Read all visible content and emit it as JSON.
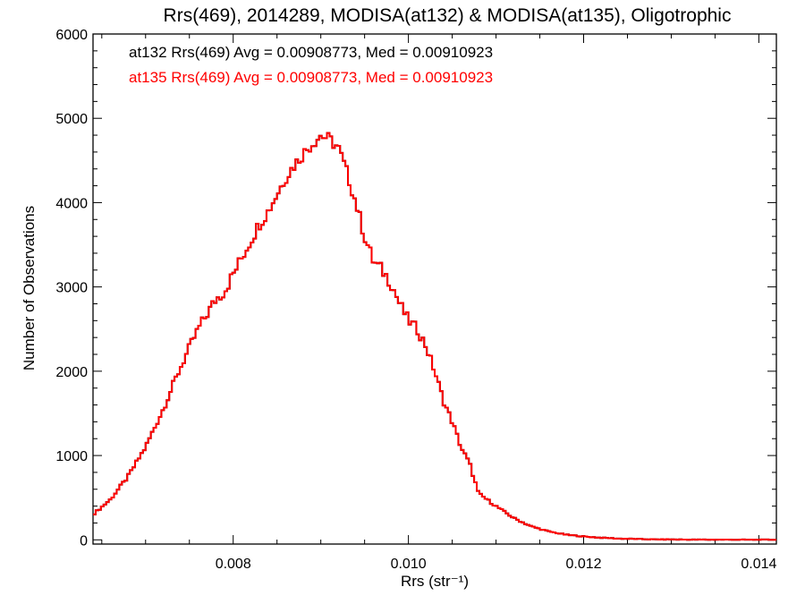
{
  "chart_data": {
    "type": "line",
    "title": "Rrs(469), 2014289, MODISA(at132) & MODISA(at135), Oligotrophic",
    "xlabel": "Rrs (str⁻¹)",
    "ylabel": "Number of Observations",
    "xlim": [
      0.0064,
      0.0142
    ],
    "ylim": [
      -50,
      6000
    ],
    "x_ticks": [
      {
        "value": 0.008,
        "label": "0.008"
      },
      {
        "value": 0.01,
        "label": "0.010"
      },
      {
        "value": 0.012,
        "label": "0.012"
      },
      {
        "value": 0.014,
        "label": "0.014"
      }
    ],
    "y_ticks": [
      {
        "value": 0,
        "label": "0"
      },
      {
        "value": 1000,
        "label": "1000"
      },
      {
        "value": 2000,
        "label": "2000"
      },
      {
        "value": 3000,
        "label": "3000"
      },
      {
        "value": 4000,
        "label": "4000"
      },
      {
        "value": 5000,
        "label": "5000"
      },
      {
        "value": 6000,
        "label": "6000"
      }
    ],
    "annotations": [
      {
        "text": "at132 Rrs(469) Avg = 0.00908773, Med = 0.00910923",
        "color": "#000000"
      },
      {
        "text": "at135 Rrs(469) Avg = 0.00908773, Med = 0.00910923",
        "color": "#ff0000"
      }
    ],
    "series": [
      {
        "color": "#000000",
        "x": [
          0.0064,
          0.0066,
          0.0068,
          0.007,
          0.0072,
          0.0074,
          0.0076,
          0.0078,
          0.0079,
          0.008,
          0.0081,
          0.0082,
          0.0083,
          0.0084,
          0.0085,
          0.0086,
          0.0087,
          0.0088,
          0.0089,
          0.009,
          0.0091,
          0.0092,
          0.0093,
          0.0094,
          0.0095,
          0.0096,
          0.0097,
          0.0098,
          0.0099,
          0.01,
          0.0101,
          0.0102,
          0.0103,
          0.0104,
          0.0105,
          0.0106,
          0.0107,
          0.0108,
          0.011,
          0.0112,
          0.0114,
          0.0116,
          0.0118,
          0.012,
          0.0122,
          0.0124,
          0.0126,
          0.0128,
          0.013,
          0.0132,
          0.0134,
          0.0136,
          0.0138,
          0.014,
          0.0142
        ],
        "y": [
          300,
          480,
          750,
          1100,
          1550,
          2050,
          2500,
          2850,
          2950,
          3150,
          3350,
          3550,
          3750,
          3900,
          4100,
          4300,
          4450,
          4580,
          4700,
          4800,
          4750,
          4650,
          4350,
          4000,
          3600,
          3300,
          3200,
          3050,
          2800,
          2600,
          2500,
          2300,
          2000,
          1650,
          1400,
          1100,
          900,
          550,
          400,
          260,
          160,
          100,
          60,
          40,
          25,
          15,
          10,
          5,
          5,
          2,
          2,
          2,
          1,
          1,
          1
        ]
      },
      {
        "color": "#ff0000",
        "x": [
          0.0064,
          0.0066,
          0.0068,
          0.007,
          0.0072,
          0.0074,
          0.0076,
          0.0078,
          0.0079,
          0.008,
          0.0081,
          0.0082,
          0.0083,
          0.0084,
          0.0085,
          0.0086,
          0.0087,
          0.0088,
          0.0089,
          0.009,
          0.0091,
          0.0092,
          0.0093,
          0.0094,
          0.0095,
          0.0096,
          0.0097,
          0.0098,
          0.0099,
          0.01,
          0.0101,
          0.0102,
          0.0103,
          0.0104,
          0.0105,
          0.0106,
          0.0107,
          0.0108,
          0.011,
          0.0112,
          0.0114,
          0.0116,
          0.0118,
          0.012,
          0.0122,
          0.0124,
          0.0126,
          0.0128,
          0.013,
          0.0132,
          0.0134,
          0.0136,
          0.0138,
          0.014,
          0.0142
        ],
        "y": [
          300,
          480,
          750,
          1100,
          1550,
          2050,
          2500,
          2850,
          2950,
          3150,
          3350,
          3550,
          3750,
          3900,
          4100,
          4300,
          4450,
          4580,
          4700,
          4800,
          4750,
          4650,
          4350,
          4000,
          3600,
          3300,
          3200,
          3050,
          2800,
          2600,
          2500,
          2300,
          2000,
          1650,
          1400,
          1100,
          900,
          550,
          400,
          260,
          160,
          100,
          60,
          40,
          25,
          15,
          10,
          5,
          5,
          2,
          2,
          2,
          1,
          1,
          1
        ]
      }
    ]
  }
}
